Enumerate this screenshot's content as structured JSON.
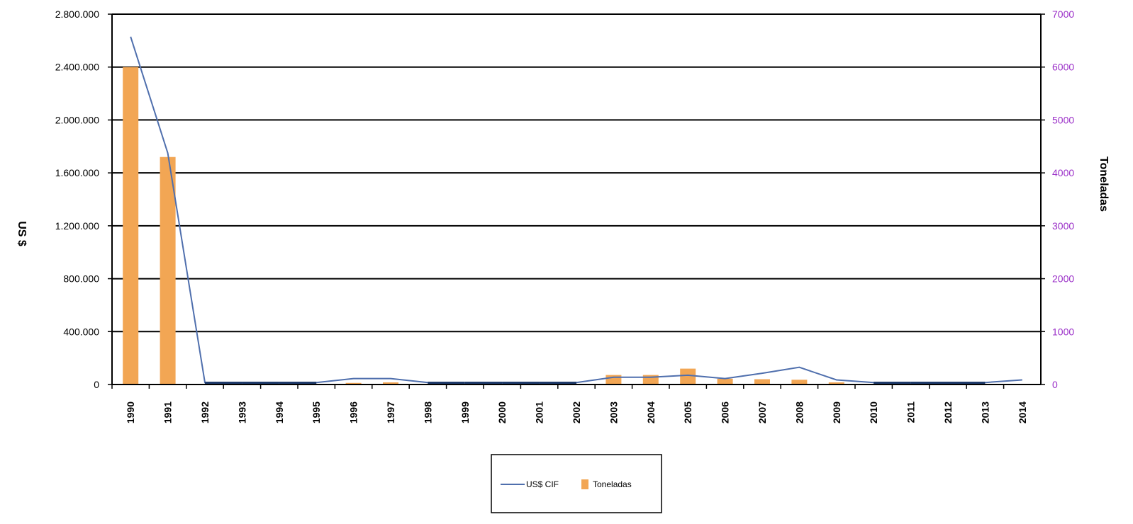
{
  "chart_data": {
    "type": "bar",
    "title": "",
    "x": [
      "1990",
      "1991",
      "1992",
      "1993",
      "1994",
      "1995",
      "1996",
      "1997",
      "1998",
      "1999",
      "2000",
      "2001",
      "2002",
      "2003",
      "2004",
      "2005",
      "2006",
      "2007",
      "2008",
      "2009",
      "2010",
      "2011",
      "2012",
      "2013",
      "2014"
    ],
    "y_left_label": "US $",
    "y_right_label": "Toneladas",
    "y_left_ticks": [
      "0",
      "400.000",
      "800.000",
      "1.200.000",
      "1.600.000",
      "2.000.000",
      "2.400.000",
      "2.800.000"
    ],
    "y_right_ticks": [
      "0",
      "1000",
      "2000",
      "3000",
      "4000",
      "5000",
      "6000",
      "7000"
    ],
    "ylim_left": [
      0,
      2800000
    ],
    "ylim_right": [
      0,
      7000
    ],
    "grid": true,
    "legend_position": "bottom-center",
    "series": [
      {
        "name": "US$ CIF",
        "type": "line",
        "axis": "left",
        "color": "#4f6fad",
        "values": [
          2630000,
          1750000,
          15000,
          15000,
          15000,
          15000,
          45000,
          45000,
          15000,
          0,
          15000,
          15000,
          15000,
          55000,
          55000,
          70000,
          45000,
          85000,
          130000,
          35000,
          15000,
          0,
          0,
          15000,
          35000
        ]
      },
      {
        "name": "Toneladas",
        "type": "bar",
        "axis": "right",
        "color": "#f2a654",
        "values": [
          6000,
          4300,
          0,
          0,
          0,
          0,
          30,
          40,
          0,
          0,
          0,
          0,
          0,
          180,
          180,
          300,
          110,
          100,
          90,
          40,
          0,
          0,
          0,
          0,
          0
        ]
      }
    ],
    "colors": {
      "right_axis_text": "#9b30c8",
      "baseline_segment": "#1f3b6b"
    }
  }
}
